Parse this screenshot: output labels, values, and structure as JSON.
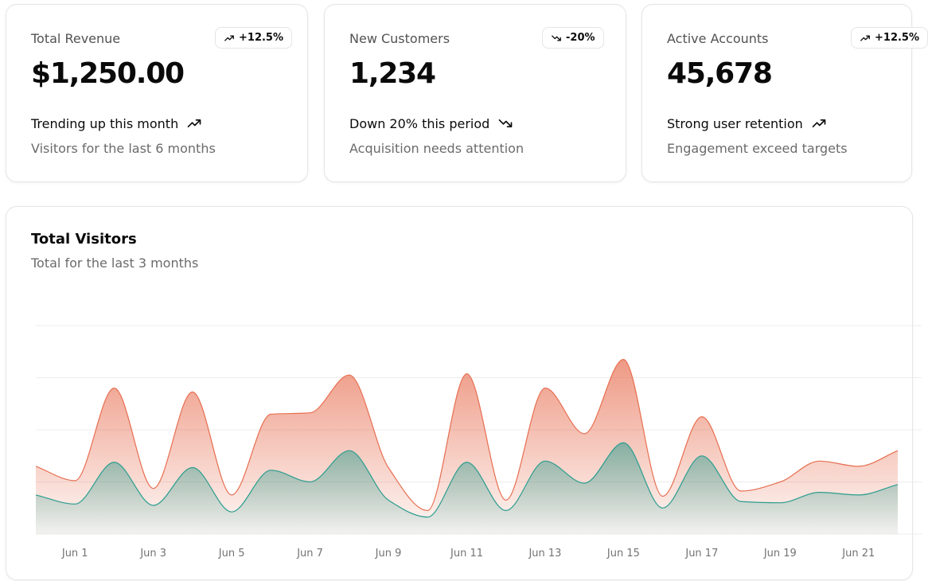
{
  "stats": [
    {
      "label": "Total Revenue",
      "value": "$1,250.00",
      "badge": "+12.5%",
      "badge_trend": "up",
      "footer": "Trending up this month",
      "footer_trend": "up",
      "subtext": "Visitors for the last 6 months"
    },
    {
      "label": "New Customers",
      "value": "1,234",
      "badge": "-20%",
      "badge_trend": "down",
      "footer": "Down 20% this period",
      "footer_trend": "down",
      "subtext": "Acquisition needs attention"
    },
    {
      "label": "Active Accounts",
      "value": "45,678",
      "badge": "+12.5%",
      "badge_trend": "up",
      "footer": "Strong user retention",
      "footer_trend": "up",
      "subtext": "Engagement exceed targets"
    }
  ],
  "visitors_chart": {
    "title": "Total Visitors",
    "subtitle": "Total for the last 3 months"
  },
  "colors": {
    "desktop": "#e76e50",
    "mobile": "#2a9d8f",
    "grid": "#ececec",
    "border": "#e5e5e5"
  },
  "chart_data": {
    "type": "area",
    "stacked": true,
    "grid": true,
    "legend": "none",
    "x": [
      "2024-05-31",
      "2024-06-01",
      "2024-06-02",
      "2024-06-03",
      "2024-06-04",
      "2024-06-05",
      "2024-06-06",
      "2024-06-07",
      "2024-06-08",
      "2024-06-09",
      "2024-06-10",
      "2024-06-11",
      "2024-06-12",
      "2024-06-13",
      "2024-06-14",
      "2024-06-15",
      "2024-06-16",
      "2024-06-17",
      "2024-06-18",
      "2024-06-19",
      "2024-06-20",
      "2024-06-21",
      "2024-06-22"
    ],
    "x_tick_labels": [
      "Jun 1",
      "Jun 3",
      "Jun 5",
      "Jun 7",
      "Jun 9",
      "Jun 11",
      "Jun 13",
      "Jun 15",
      "Jun 17",
      "Jun 19",
      "Jun 21"
    ],
    "x_tick_dates": [
      "2024-06-01",
      "2024-06-03",
      "2024-06-05",
      "2024-06-07",
      "2024-06-09",
      "2024-06-11",
      "2024-06-13",
      "2024-06-15",
      "2024-06-17",
      "2024-06-19",
      "2024-06-21"
    ],
    "ylim": [
      0,
      800
    ],
    "series": [
      {
        "key": "mobile",
        "color": "#2a9d8f",
        "values": [
          150,
          115,
          275,
          110,
          255,
          85,
          245,
          200,
          320,
          130,
          65,
          275,
          90,
          280,
          195,
          350,
          100,
          300,
          125,
          120,
          160,
          150,
          190
        ]
      },
      {
        "key": "desktop",
        "color": "#e76e50",
        "values": [
          110,
          90,
          285,
          65,
          290,
          65,
          215,
          265,
          290,
          125,
          25,
          340,
          40,
          280,
          190,
          320,
          45,
          150,
          40,
          80,
          120,
          110,
          130
        ]
      }
    ]
  }
}
